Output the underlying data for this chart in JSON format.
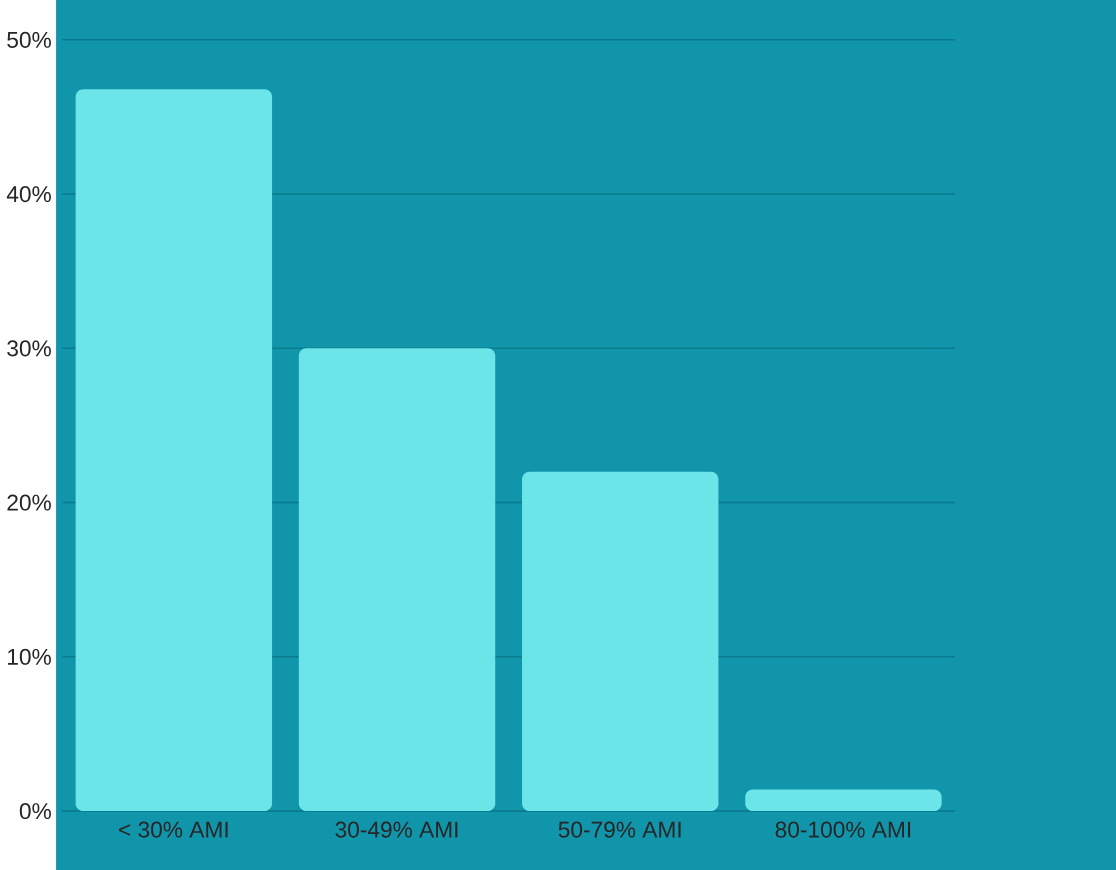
{
  "chart_data": {
    "type": "bar",
    "categories": [
      "< 30% AMI",
      "30-49% AMI",
      "50-79% AMI",
      "80-100% AMI"
    ],
    "values": [
      46.8,
      30,
      22,
      1.4
    ],
    "color": "#6be5e8",
    "ylim": [
      0,
      50
    ],
    "yticks": [
      {
        "value": 0,
        "label": "0%"
      },
      {
        "value": 10,
        "label": "10%"
      },
      {
        "value": 20,
        "label": "20%"
      },
      {
        "value": 30,
        "label": "30%"
      },
      {
        "value": 40,
        "label": "40%"
      },
      {
        "value": 50,
        "label": "50%"
      }
    ],
    "grid": "y"
  }
}
